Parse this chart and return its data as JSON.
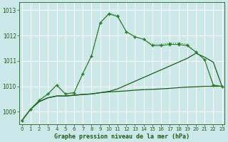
{
  "title": "Graphe pression niveau de la mer (hPa)",
  "background_color": "#cce8e8",
  "grid_color": "#ffffff",
  "line_color_dark": "#1a5c1a",
  "line_color_mid": "#2d7a2d",
  "ylim": [
    1008.5,
    1013.3
  ],
  "xlim": [
    -0.3,
    23.3
  ],
  "yticks": [
    1009,
    1010,
    1011,
    1012,
    1013
  ],
  "xticks": [
    0,
    1,
    2,
    3,
    4,
    5,
    6,
    7,
    8,
    9,
    10,
    11,
    12,
    13,
    14,
    15,
    16,
    17,
    18,
    19,
    20,
    21,
    22,
    23
  ],
  "hours": [
    0,
    1,
    2,
    3,
    4,
    5,
    6,
    7,
    8,
    9,
    10,
    11,
    12,
    13,
    14,
    15,
    16,
    17,
    18,
    19,
    20,
    21,
    22,
    23
  ],
  "line_flat": [
    1008.65,
    1009.1,
    1009.4,
    1009.55,
    1009.62,
    1009.62,
    1009.65,
    1009.68,
    1009.7,
    1009.75,
    1009.78,
    1009.8,
    1009.82,
    1009.85,
    1009.87,
    1009.88,
    1009.9,
    1009.92,
    1009.95,
    1009.97,
    1009.98,
    1010.0,
    1010.0,
    1010.0
  ],
  "line_rise": [
    1008.65,
    1009.1,
    1009.4,
    1009.55,
    1009.62,
    1009.62,
    1009.65,
    1009.68,
    1009.7,
    1009.75,
    1009.8,
    1009.9,
    1010.05,
    1010.2,
    1010.35,
    1010.5,
    1010.65,
    1010.8,
    1010.95,
    1011.1,
    1011.3,
    1011.15,
    1010.95,
    1010.0
  ],
  "line_peak1": [
    1008.65,
    1009.1,
    1009.45,
    1009.7,
    1010.05,
    1009.7,
    1009.75,
    1010.5,
    1011.2,
    1012.5,
    1012.85,
    1012.75,
    1012.15,
    1011.95,
    1011.85,
    1011.6,
    1011.6,
    1011.65,
    1011.65,
    1011.6,
    1011.35,
    1011.05,
    1010.05,
    1010.0
  ],
  "line_peak2": [
    1008.65,
    1009.1,
    1009.45,
    1009.7,
    1010.05,
    1009.7,
    1009.75,
    1010.5,
    1011.2,
    1012.5,
    1012.88,
    1012.78,
    1012.15,
    1011.95,
    1011.85,
    1011.65,
    1011.65,
    1011.7,
    1011.7,
    1011.65,
    1011.35,
    1011.05,
    1010.05,
    1010.0
  ]
}
